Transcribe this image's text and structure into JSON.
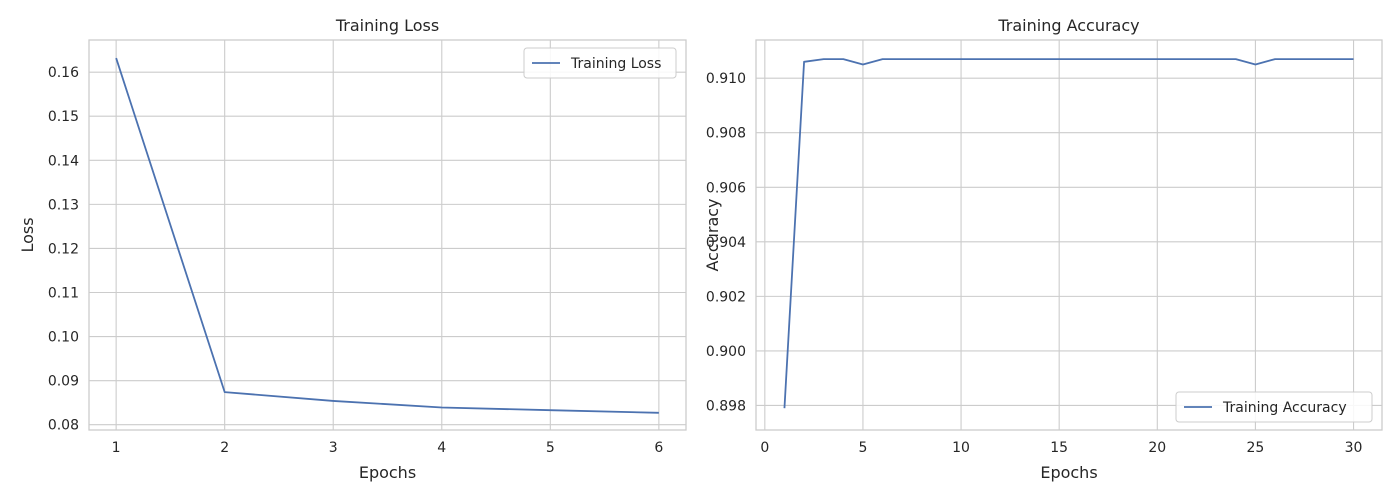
{
  "colors": {
    "line": "#4c72b0",
    "grid": "#cccccc",
    "spine": "#cccccc",
    "text": "#262626",
    "background": "#ffffff"
  },
  "chart_data": [
    {
      "type": "line",
      "title": "Training Loss",
      "xlabel": "Epochs",
      "ylabel": "Loss",
      "xlim": [
        0.75,
        6.25
      ],
      "ylim": [
        0.0788,
        0.1673
      ],
      "xticks": [
        1,
        2,
        3,
        4,
        5,
        6
      ],
      "yticks": [
        0.08,
        0.09,
        0.1,
        0.11,
        0.12,
        0.13,
        0.14,
        0.15,
        0.16
      ],
      "ytick_labels": [
        "0.08",
        "0.09",
        "0.10",
        "0.11",
        "0.12",
        "0.13",
        "0.14",
        "0.15",
        "0.16"
      ],
      "grid": true,
      "legend": "upper right",
      "series": [
        {
          "name": "Training Loss",
          "x": [
            1,
            2,
            3,
            4,
            5,
            6
          ],
          "y": [
            0.1632,
            0.0874,
            0.0854,
            0.0839,
            0.0833,
            0.0827
          ]
        }
      ]
    },
    {
      "type": "line",
      "title": "Training Accuracy",
      "xlabel": "Epochs",
      "ylabel": "Accuracy",
      "xlim": [
        -0.45,
        31.45
      ],
      "ylim": [
        0.8971,
        0.9114
      ],
      "xticks": [
        0,
        5,
        10,
        15,
        20,
        25,
        30
      ],
      "yticks": [
        0.898,
        0.9,
        0.902,
        0.904,
        0.906,
        0.908,
        0.91
      ],
      "ytick_labels": [
        "0.898",
        "0.900",
        "0.902",
        "0.904",
        "0.906",
        "0.908",
        "0.910"
      ],
      "grid": true,
      "legend": "lower right",
      "series": [
        {
          "name": "Training Accuracy",
          "x": [
            1,
            2,
            3,
            4,
            5,
            6,
            7,
            8,
            9,
            10,
            11,
            12,
            13,
            14,
            15,
            16,
            17,
            18,
            19,
            20,
            21,
            22,
            23,
            24,
            25,
            26,
            27,
            28,
            29,
            30
          ],
          "y": [
            0.8979,
            0.9106,
            0.9107,
            0.9107,
            0.9105,
            0.9107,
            0.9107,
            0.9107,
            0.9107,
            0.9107,
            0.9107,
            0.9107,
            0.9107,
            0.9107,
            0.9107,
            0.9107,
            0.9107,
            0.9107,
            0.9107,
            0.9107,
            0.9107,
            0.9107,
            0.9107,
            0.9107,
            0.9105,
            0.9107,
            0.9107,
            0.9107,
            0.9107,
            0.9107
          ]
        }
      ]
    }
  ]
}
